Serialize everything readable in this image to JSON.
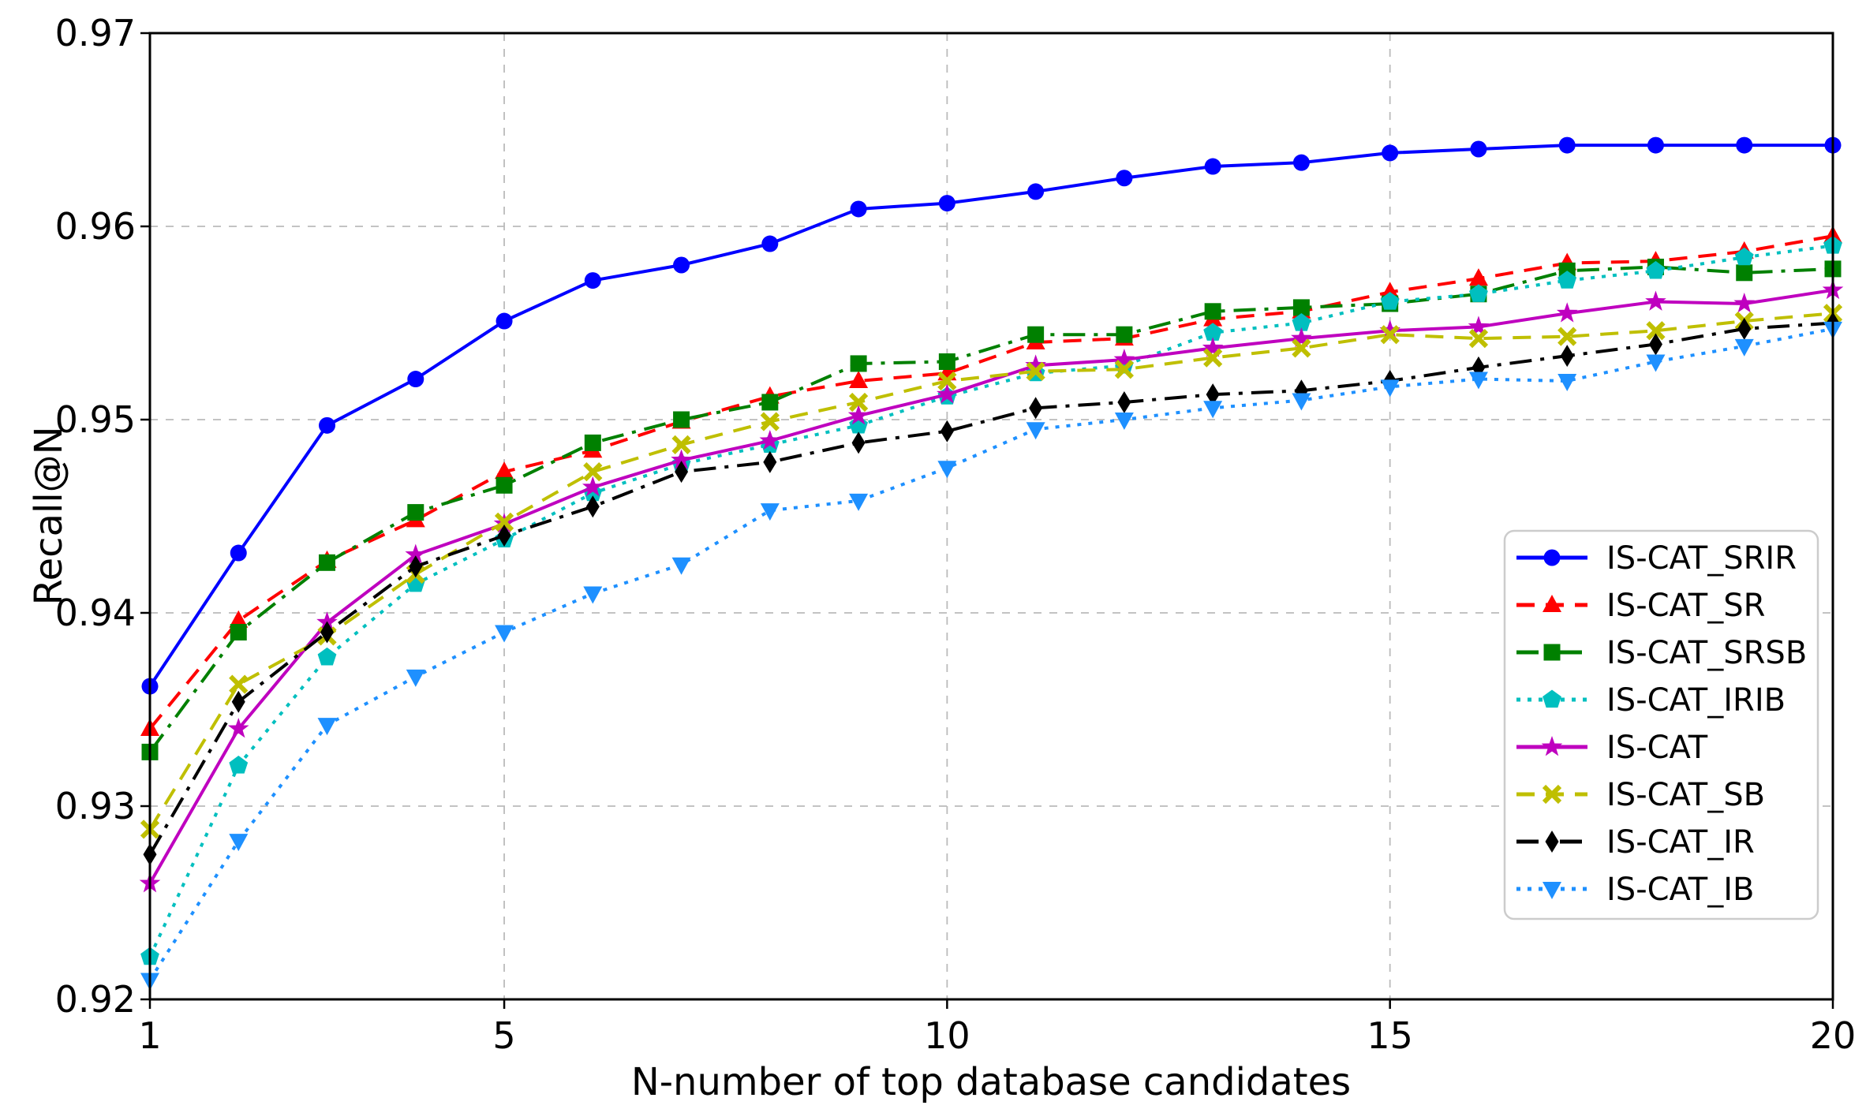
{
  "chart_data": {
    "type": "line",
    "title": "",
    "xlabel": "N-number of top database candidates",
    "ylabel": "Recall@N",
    "x": [
      1,
      2,
      3,
      4,
      5,
      6,
      7,
      8,
      9,
      10,
      11,
      12,
      13,
      14,
      15,
      16,
      17,
      18,
      19,
      20
    ],
    "xlim": [
      1,
      20
    ],
    "ylim": [
      0.92,
      0.97
    ],
    "xticks": [
      1,
      5,
      10,
      15,
      20
    ],
    "yticks": [
      0.92,
      0.93,
      0.94,
      0.95,
      0.96,
      0.97
    ],
    "grid": true,
    "grid_color": "#bbbbbb",
    "legend_position": "lower right",
    "series": [
      {
        "name": "IS-CAT_SRIR",
        "color": "#0000ff",
        "linestyle": "solid",
        "marker": "circle",
        "values": [
          0.9362,
          0.9431,
          0.9497,
          0.9521,
          0.9551,
          0.9572,
          0.958,
          0.9591,
          0.9609,
          0.9612,
          0.9618,
          0.9625,
          0.9631,
          0.9633,
          0.9638,
          0.964,
          0.9642,
          0.9642,
          0.9642,
          0.9642
        ]
      },
      {
        "name": "IS-CAT_SR",
        "color": "#ff0000",
        "linestyle": "dashed",
        "marker": "triangle-up",
        "values": [
          0.934,
          0.9396,
          0.9427,
          0.9448,
          0.9473,
          0.9484,
          0.9499,
          0.9512,
          0.952,
          0.9524,
          0.954,
          0.9542,
          0.9552,
          0.9556,
          0.9566,
          0.9573,
          0.9581,
          0.9582,
          0.9587,
          0.9595
        ]
      },
      {
        "name": "IS-CAT_SRSB",
        "color": "#008000",
        "linestyle": "dashdot",
        "marker": "square",
        "values": [
          0.9328,
          0.939,
          0.9426,
          0.9452,
          0.9466,
          0.9488,
          0.95,
          0.9509,
          0.9529,
          0.953,
          0.9544,
          0.9544,
          0.9556,
          0.9558,
          0.956,
          0.9565,
          0.9577,
          0.9579,
          0.9576,
          0.9578
        ]
      },
      {
        "name": "IS-CAT_IRIB",
        "color": "#00bfbf",
        "linestyle": "dotted",
        "marker": "pentagon",
        "values": [
          0.9222,
          0.9321,
          0.9377,
          0.9415,
          0.9438,
          0.9462,
          0.9477,
          0.9487,
          0.9497,
          0.9512,
          0.9524,
          0.9528,
          0.9545,
          0.955,
          0.9561,
          0.9565,
          0.9572,
          0.9577,
          0.9584,
          0.959
        ]
      },
      {
        "name": "IS-CAT",
        "color": "#bf00bf",
        "linestyle": "solid",
        "marker": "star",
        "values": [
          0.926,
          0.934,
          0.9395,
          0.943,
          0.9446,
          0.9465,
          0.9479,
          0.9489,
          0.9502,
          0.9513,
          0.9528,
          0.9531,
          0.9537,
          0.9542,
          0.9546,
          0.9548,
          0.9555,
          0.9561,
          0.956,
          0.9567
        ]
      },
      {
        "name": "IS-CAT_SB",
        "color": "#bfbf00",
        "linestyle": "dashed",
        "marker": "x",
        "values": [
          0.9288,
          0.9363,
          0.9388,
          0.942,
          0.9447,
          0.9473,
          0.9487,
          0.9499,
          0.9509,
          0.952,
          0.9525,
          0.9526,
          0.9532,
          0.9537,
          0.9544,
          0.9542,
          0.9543,
          0.9546,
          0.9551,
          0.9555
        ]
      },
      {
        "name": "IS-CAT_IR",
        "color": "#000000",
        "linestyle": "dashdot",
        "marker": "diamond",
        "values": [
          0.9275,
          0.9354,
          0.939,
          0.9424,
          0.944,
          0.9455,
          0.9473,
          0.9478,
          0.9488,
          0.9494,
          0.9506,
          0.9509,
          0.9513,
          0.9515,
          0.952,
          0.9527,
          0.9533,
          0.9539,
          0.9547,
          0.955
        ]
      },
      {
        "name": "IS-CAT_IB",
        "color": "#1e90ff",
        "linestyle": "dotted",
        "marker": "triangle-down",
        "values": [
          0.921,
          0.9282,
          0.9342,
          0.9367,
          0.939,
          0.941,
          0.9425,
          0.9453,
          0.9458,
          0.9475,
          0.9495,
          0.95,
          0.9506,
          0.951,
          0.9517,
          0.9521,
          0.952,
          0.953,
          0.9538,
          0.9547
        ]
      }
    ]
  }
}
